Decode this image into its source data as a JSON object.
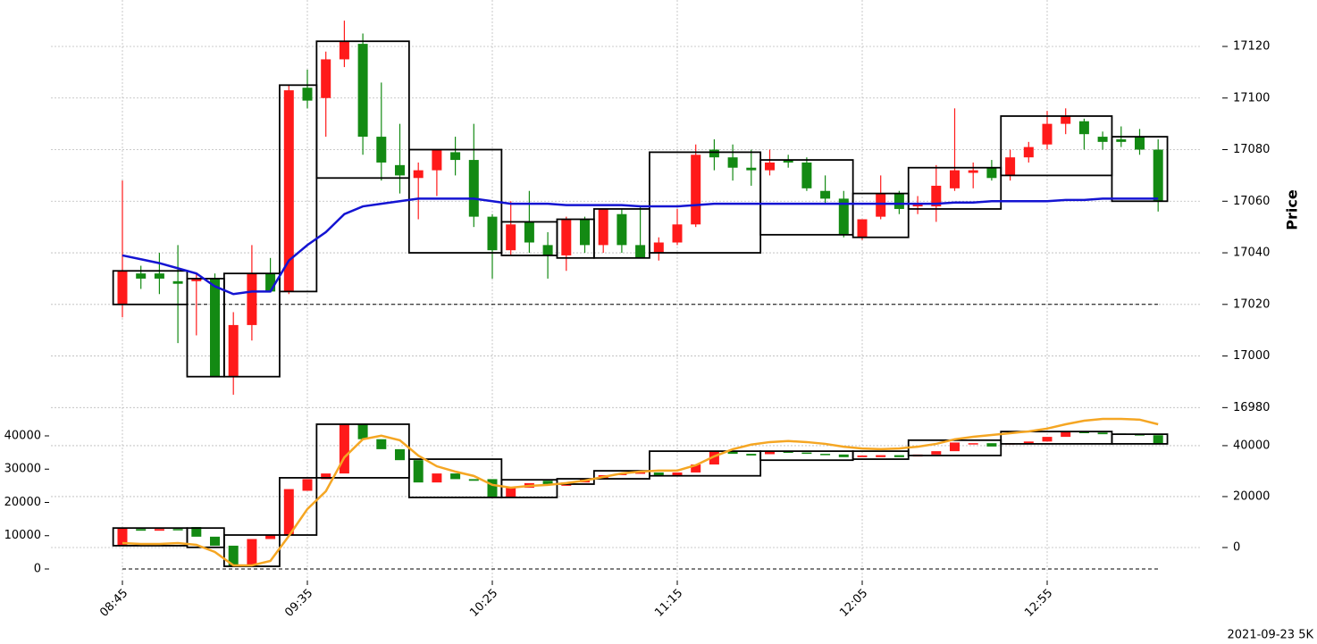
{
  "chart_data": [
    {
      "type": "candlestick",
      "ylabel": "Price",
      "open": [
        17020,
        17032,
        17032,
        17029,
        17029,
        17030,
        16992,
        17012,
        17032,
        17025,
        17104,
        17100,
        17115,
        17121,
        17085,
        17074,
        17069,
        17072,
        17079,
        17076,
        17054,
        17041,
        17052,
        17043,
        17039,
        17053,
        17043,
        17055,
        17043,
        17040,
        17044,
        17051,
        17080,
        17077,
        17073,
        17072,
        17076,
        17075,
        17064,
        17061,
        17046,
        17054,
        17063,
        17058,
        17058,
        17065,
        17071,
        17073,
        17070,
        17077,
        17082,
        17090,
        17091,
        17085,
        17084,
        17085,
        17080
      ],
      "high": [
        17068,
        17035,
        17040,
        17043,
        17032,
        17032,
        17017,
        17043,
        17038,
        17105,
        17111,
        17118,
        17130,
        17125,
        17106,
        17090,
        17075,
        17080,
        17085,
        17090,
        17055,
        17060,
        17064,
        17048,
        17054,
        17054,
        17057,
        17057,
        17058,
        17046,
        17057,
        17082,
        17084,
        17082,
        17080,
        17080,
        17078,
        17077,
        17070,
        17064,
        17053,
        17070,
        17064,
        17062,
        17074,
        17096,
        17075,
        17076,
        17080,
        17083,
        17095,
        17096,
        17092,
        17087,
        17089,
        17088,
        17084
      ],
      "low": [
        17015,
        17026,
        17024,
        17005,
        17008,
        16992,
        16985,
        17006,
        17025,
        17024,
        17096,
        17085,
        17112,
        17078,
        17068,
        17063,
        17053,
        17062,
        17070,
        17050,
        17030,
        17039,
        17040,
        17030,
        17033,
        17040,
        17040,
        17040,
        17038,
        17037,
        17043,
        17050,
        17072,
        17068,
        17066,
        17070,
        17073,
        17064,
        17059,
        17046,
        17045,
        17053,
        17055,
        17055,
        17052,
        17064,
        17065,
        17068,
        17068,
        17075,
        17080,
        17086,
        17080,
        17080,
        17081,
        17078,
        17056
      ],
      "close": [
        17033,
        17030,
        17030,
        17028,
        17030,
        16992,
        17012,
        17032,
        17025,
        17103,
        17099,
        17115,
        17122,
        17085,
        17075,
        17070,
        17072,
        17080,
        17076,
        17054,
        17041,
        17051,
        17044,
        17039,
        17053,
        17043,
        17057,
        17043,
        17038,
        17044,
        17051,
        17078,
        17077,
        17073,
        17072,
        17075,
        17075,
        17065,
        17061,
        17047,
        17053,
        17063,
        17057,
        17059,
        17066,
        17072,
        17072,
        17069,
        17077,
        17081,
        17090,
        17093,
        17086,
        17083,
        17083,
        17080,
        17060
      ],
      "up_color": "#ff1a1a",
      "down_color": "#138a13",
      "line": {
        "color": "#1414d2",
        "values": [
          17039,
          17037.5,
          17036,
          17034,
          17032,
          17027,
          17024,
          17025,
          17025,
          17037,
          17043,
          17048,
          17055,
          17058,
          17059,
          17060,
          17061,
          17061,
          17061,
          17061,
          17060,
          17059,
          17059,
          17059,
          17058.5,
          17058.5,
          17058.5,
          17058.5,
          17058,
          17058,
          17058,
          17058.5,
          17059,
          17059,
          17059,
          17059,
          17059,
          17059,
          17059,
          17059,
          17059,
          17059,
          17059,
          17059,
          17059,
          17059.5,
          17059.5,
          17060,
          17060,
          17060,
          17060,
          17060.5,
          17060.5,
          17061,
          17061,
          17061,
          17061
        ]
      },
      "boxes": [
        {
          "first": 0,
          "last": 3,
          "low": 17020,
          "high": 17033
        },
        {
          "first": 4,
          "last": 5,
          "low": 16992,
          "high": 17030
        },
        {
          "first": 6,
          "last": 8,
          "low": 16992,
          "high": 17032
        },
        {
          "first": 9,
          "last": 10,
          "low": 17025,
          "high": 17105
        },
        {
          "first": 11,
          "last": 15,
          "low": 17069,
          "high": 17122
        },
        {
          "first": 16,
          "last": 20,
          "low": 17040,
          "high": 17080
        },
        {
          "first": 21,
          "last": 23,
          "low": 17039,
          "high": 17052
        },
        {
          "first": 24,
          "last": 25,
          "low": 17038,
          "high": 17053
        },
        {
          "first": 26,
          "last": 28,
          "low": 17038,
          "high": 17057
        },
        {
          "first": 29,
          "last": 34,
          "low": 17040,
          "high": 17079
        },
        {
          "first": 35,
          "last": 39,
          "low": 17047,
          "high": 17076
        },
        {
          "first": 40,
          "last": 42,
          "low": 17046,
          "high": 17063
        },
        {
          "first": 43,
          "last": 47,
          "low": 17057,
          "high": 17073
        },
        {
          "first": 48,
          "last": 53,
          "low": 17070,
          "high": 17093
        },
        {
          "first": 54,
          "last": 56,
          "low": 17060,
          "high": 17085
        }
      ],
      "box_color": "#000000",
      "reference_line": 17020,
      "ylim": [
        16977,
        17138
      ],
      "yticks": [
        16980,
        17000,
        17020,
        17040,
        17060,
        17080,
        17100,
        17120
      ],
      "grid": true
    },
    {
      "type": "candlestick",
      "categories": [
        "08:45",
        null,
        null,
        null,
        null,
        null,
        null,
        null,
        null,
        null,
        "09:35",
        null,
        null,
        null,
        null,
        null,
        null,
        null,
        null,
        null,
        "10:25",
        null,
        null,
        null,
        null,
        null,
        null,
        null,
        null,
        null,
        "11:15",
        null,
        null,
        null,
        null,
        null,
        null,
        null,
        null,
        null,
        "12:05",
        null,
        null,
        null,
        null,
        null,
        null,
        null,
        null,
        null,
        "12:55",
        null,
        null,
        null,
        null,
        null,
        null
      ],
      "open": [
        7000,
        12000,
        11500,
        12000,
        12600,
        9700,
        7000,
        1000,
        9000,
        10200,
        23500,
        27000,
        28700,
        43700,
        39000,
        36000,
        32700,
        26000,
        28700,
        27000,
        27000,
        21700,
        24400,
        26500,
        25000,
        26000,
        27000,
        28200,
        28700,
        29000,
        28000,
        29000,
        31400,
        35200,
        34600,
        34500,
        35400,
        35000,
        34600,
        34400,
        33600,
        33600,
        34200,
        33800,
        34400,
        35400,
        37600,
        37800,
        37500,
        37800,
        38300,
        39700,
        41300,
        41000,
        40700,
        40500,
        40200
      ],
      "close": [
        12300,
        11500,
        12000,
        11800,
        9700,
        7000,
        1000,
        9000,
        10200,
        24000,
        27000,
        28700,
        43700,
        39000,
        36000,
        32700,
        26000,
        28700,
        27000,
        26500,
        21700,
        24400,
        25800,
        25200,
        26000,
        27000,
        28200,
        28700,
        29000,
        28000,
        29000,
        31400,
        35200,
        34600,
        34100,
        35400,
        34900,
        34600,
        34400,
        33600,
        34100,
        34200,
        33600,
        34400,
        35400,
        38000,
        37800,
        36800,
        37800,
        38300,
        39700,
        41300,
        40800,
        40500,
        40500,
        40200,
        37600
      ],
      "up_color": "#ff1a1a",
      "down_color": "#138a13",
      "line": {
        "color": "#f5a623",
        "axis": "y2",
        "values": [
          1750,
          1400,
          1400,
          1750,
          1050,
          -1750,
          -7000,
          -7000,
          -5260,
          4560,
          15100,
          22100,
          35400,
          42500,
          43900,
          42100,
          36100,
          31900,
          29800,
          28100,
          24600,
          23500,
          24200,
          24600,
          25300,
          26300,
          27700,
          29100,
          29800,
          30200,
          30200,
          32300,
          35800,
          38600,
          40400,
          41400,
          41800,
          41400,
          40700,
          39600,
          38900,
          38600,
          38900,
          39600,
          40700,
          42500,
          43500,
          44200,
          44900,
          45600,
          46700,
          48400,
          49800,
          50500,
          50500,
          50200,
          48400
        ]
      },
      "boxes": [
        {
          "first": 0,
          "last": 3,
          "low": 7000,
          "high": 12300
        },
        {
          "first": 4,
          "last": 5,
          "low": 6500,
          "high": 12300
        },
        {
          "first": 6,
          "last": 8,
          "low": 800,
          "high": 10200
        },
        {
          "first": 9,
          "last": 10,
          "low": 10200,
          "high": 27400
        },
        {
          "first": 11,
          "last": 15,
          "low": 27400,
          "high": 43500
        },
        {
          "first": 16,
          "last": 20,
          "low": 21500,
          "high": 33000
        },
        {
          "first": 21,
          "last": 23,
          "low": 21500,
          "high": 26800
        },
        {
          "first": 24,
          "last": 25,
          "low": 25500,
          "high": 27100
        },
        {
          "first": 26,
          "last": 28,
          "low": 27100,
          "high": 29500
        },
        {
          "first": 29,
          "last": 34,
          "low": 28000,
          "high": 35400
        },
        {
          "first": 35,
          "last": 39,
          "low": 32700,
          "high": 35400
        },
        {
          "first": 40,
          "last": 42,
          "low": 33000,
          "high": 35400
        },
        {
          "first": 43,
          "last": 47,
          "low": 34100,
          "high": 38700
        },
        {
          "first": 48,
          "last": 53,
          "low": 37600,
          "high": 41300
        },
        {
          "first": 54,
          "last": 56,
          "low": 37600,
          "high": 40500
        }
      ],
      "box_color": "#000000",
      "reference_line": 0,
      "ylim": [
        -3490,
        46170
      ],
      "yticks": [
        0,
        10000,
        20000,
        30000,
        40000
      ],
      "y2lim": [
        -12980,
        51900
      ],
      "y2ticks": [
        0,
        20000,
        40000
      ],
      "grid": true,
      "note": "2021-09-23 5K"
    }
  ]
}
